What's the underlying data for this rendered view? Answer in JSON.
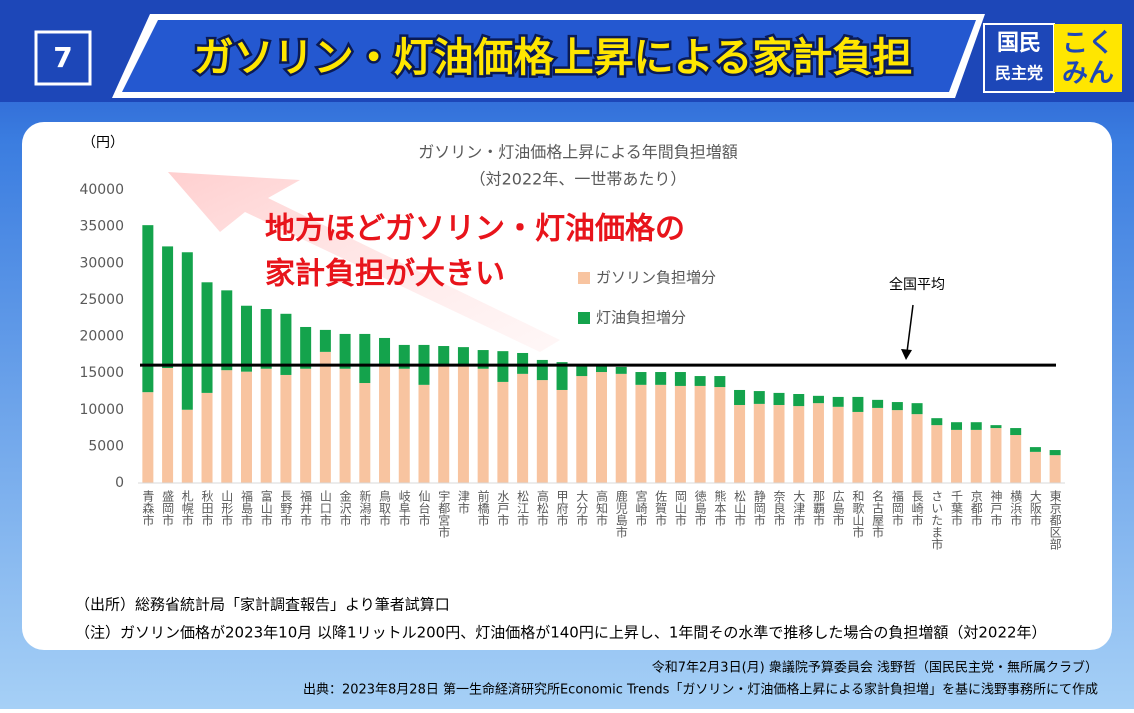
{
  "slide": {
    "number": "7",
    "title": "ガソリン・灯油価格上昇による家計負担",
    "logo": [
      "国民",
      "民主党",
      "こく",
      "みん"
    ]
  },
  "chart_data": {
    "type": "bar",
    "stacked": true,
    "title": "ガソリン・灯油価格上昇による年間負担増額",
    "subtitle": "（対2022年、一世帯あたり）",
    "y_label": "（円）",
    "annotation": [
      "地方ほどガソリン・灯油価格の",
      "家計負担が大きい"
    ],
    "reference_line": {
      "value": 16100,
      "label": "全国平均"
    },
    "categories": [
      "青森市",
      "盛岡市",
      "札幌市",
      "秋田市",
      "山形市",
      "福島市",
      "富山市",
      "長野市",
      "福井市",
      "山口市",
      "金沢市",
      "新潟市",
      "鳥取市",
      "岐阜市",
      "仙台市",
      "宇都宮市",
      "津市",
      "前橋市",
      "水戸市",
      "松江市",
      "高松市",
      "甲府市",
      "大分市",
      "高知市",
      "鹿児島市",
      "宮崎市",
      "佐賀市",
      "岡山市",
      "徳島市",
      "熊本市",
      "松山市",
      "静岡市",
      "奈良市",
      "大津市",
      "那覇市",
      "広島市",
      "和歌山市",
      "名古屋市",
      "福岡市",
      "長崎市",
      "さいたま市",
      "千葉市",
      "京都市",
      "神戸市",
      "横浜市",
      "大阪市",
      "東京都区部"
    ],
    "series": [
      {
        "name": "ガソリン負担増分",
        "color": "#f8c4a0",
        "values": [
          12400,
          15700,
          10000,
          12300,
          15400,
          15200,
          15600,
          14750,
          15600,
          17900,
          15600,
          13650,
          16000,
          15600,
          13400,
          16100,
          16100,
          15600,
          13800,
          14900,
          14050,
          12700,
          14600,
          15150,
          14900,
          13400,
          13400,
          13250,
          13250,
          13100,
          10650,
          10800,
          10650,
          10500,
          10900,
          10400,
          9700,
          10250,
          9950,
          9400,
          7900,
          7250,
          7250,
          7500,
          6550,
          4250,
          3800
        ]
      },
      {
        "name": "灯油負担増分",
        "color": "#14a34c",
        "values": [
          22800,
          16600,
          21500,
          15100,
          10900,
          9000,
          8150,
          8350,
          5700,
          3000,
          4750,
          6700,
          3800,
          3250,
          5450,
          2600,
          2450,
          2550,
          4200,
          2850,
          2750,
          3800,
          1500,
          850,
          950,
          1750,
          1750,
          1900,
          1350,
          1500,
          2050,
          1750,
          1650,
          1650,
          1000,
          1350,
          2050,
          1100,
          1100,
          1500,
          950,
          1050,
          1050,
          400,
          950,
          650,
          700
        ]
      }
    ],
    "ylim": [
      0,
      40000
    ],
    "yticks": [
      0,
      5000,
      10000,
      15000,
      20000,
      25000,
      30000,
      35000,
      40000
    ],
    "grid": false,
    "legend": "top-center"
  },
  "notes": [
    "（出所）総務省統計局「家計調査報告」より筆者試算口",
    "（注）ガソリン価格が2023年10月 以降1リットル200円、灯油価格が140円に上昇し、1年間その水準で推移した場合の負担増額（対2022年）"
  ],
  "footer": [
    "令和7年2月3日(月) 衆議院予算委員会 浅野哲（国民民主党・無所属クラブ）",
    "出典：2023年8月28日 第一生命経済研究所Economic Trends「ガソリン・灯油価格上昇による家計負担増」を基に浅野事務所にて作成"
  ]
}
